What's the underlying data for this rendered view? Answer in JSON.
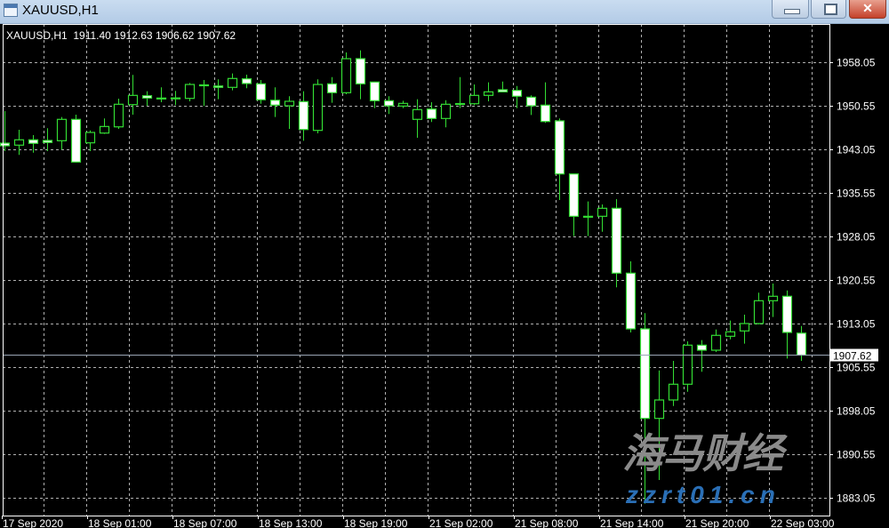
{
  "window": {
    "title": "XAUUSD,H1",
    "buttons": [
      "minimize",
      "maximize",
      "close"
    ]
  },
  "header": {
    "symbol": "XAUUSD,H1",
    "open": "1911.40",
    "high": "1912.63",
    "low": "1906.62",
    "close": "1907.62"
  },
  "watermark": {
    "brand": "海马财经",
    "url": "zzrt01.cn"
  },
  "colors": {
    "background": "#000000",
    "candle_outline": "#33dd33",
    "bull_body": "#000000",
    "bear_body": "#ffffff",
    "grid": "#b0b0b0",
    "price_line": "#9aa5b5"
  },
  "chart_data": {
    "type": "candlestick",
    "symbol": "XAUUSD",
    "timeframe": "H1",
    "ylim": [
      1878.5,
      1966
    ],
    "y_ticks": [
      "1958.05",
      "1950.55",
      "1943.05",
      "1935.55",
      "1928.05",
      "1920.55",
      "1913.05",
      "1905.55",
      "1898.05",
      "1890.55",
      "1883.05"
    ],
    "x_tick_labels": [
      "17 Sep 2020",
      "18 Sep 01:00",
      "18 Sep 07:00",
      "18 Sep 13:00",
      "18 Sep 19:00",
      "21 Sep 02:00",
      "21 Sep 08:00",
      "21 Sep 14:00",
      "21 Sep 20:00",
      "22 Sep 03:00"
    ],
    "current_price": "1907.62",
    "grid": true,
    "ohlc": [
      [
        1944.12,
        1949.63,
        1942.74,
        1943.66
      ],
      [
        1943.77,
        1946.42,
        1942.09,
        1944.69
      ],
      [
        1944.69,
        1945.5,
        1942.48,
        1944.08
      ],
      [
        1944.58,
        1946.68,
        1942.74,
        1944.23
      ],
      [
        1944.53,
        1948.61,
        1943.0,
        1948.21
      ],
      [
        1948.21,
        1949.02,
        1940.8,
        1940.86
      ],
      [
        1944.17,
        1946.31,
        1942.74,
        1945.96
      ],
      [
        1945.85,
        1948.36,
        1945.7,
        1946.98
      ],
      [
        1946.92,
        1951.77,
        1946.57,
        1950.81
      ],
      [
        1950.75,
        1955.86,
        1949.02,
        1952.34
      ],
      [
        1952.28,
        1953.05,
        1950.55,
        1951.88
      ],
      [
        1951.88,
        1953.72,
        1951.16,
        1951.85
      ],
      [
        1951.88,
        1953.11,
        1950.66,
        1951.9
      ],
      [
        1951.82,
        1954.48,
        1951.32,
        1954.22
      ],
      [
        1954.15,
        1954.99,
        1950.5,
        1954.09
      ],
      [
        1953.96,
        1955.1,
        1951.67,
        1953.72
      ],
      [
        1953.72,
        1956.11,
        1953.2,
        1955.25
      ],
      [
        1955.19,
        1955.91,
        1953.57,
        1954.38
      ],
      [
        1954.33,
        1954.99,
        1950.9,
        1951.58
      ],
      [
        1951.51,
        1953.72,
        1948.61,
        1950.66
      ],
      [
        1950.55,
        1952.19,
        1946.57,
        1951.32
      ],
      [
        1951.27,
        1953.05,
        1944.53,
        1946.46
      ],
      [
        1946.31,
        1955.1,
        1945.81,
        1954.22
      ],
      [
        1954.33,
        1955.49,
        1951.06,
        1952.8
      ],
      [
        1952.8,
        1959.73,
        1952.54,
        1958.66
      ],
      [
        1958.66,
        1960.09,
        1951.67,
        1954.33
      ],
      [
        1954.64,
        1954.7,
        1950.14,
        1951.42
      ],
      [
        1951.42,
        1952.19,
        1949.13,
        1950.55
      ],
      [
        1950.5,
        1951.42,
        1950.14,
        1950.96
      ],
      [
        1948.21,
        1951.67,
        1945.04,
        1949.89
      ],
      [
        1949.98,
        1951.16,
        1947.75,
        1948.36
      ],
      [
        1948.36,
        1951.51,
        1946.83,
        1950.81
      ],
      [
        1950.93,
        1955.49,
        1950.14,
        1950.87
      ],
      [
        1950.9,
        1954.22,
        1950.66,
        1952.34
      ],
      [
        1952.34,
        1954.58,
        1951.32,
        1952.95
      ],
      [
        1953.31,
        1954.73,
        1952.92,
        1952.95
      ],
      [
        1953.2,
        1953.96,
        1950.14,
        1952.19
      ],
      [
        1952.03,
        1952.34,
        1948.97,
        1950.55
      ],
      [
        1950.66,
        1954.58,
        1947.6,
        1947.84
      ],
      [
        1947.95,
        1948.36,
        1934.33,
        1938.81
      ],
      [
        1938.81,
        1938.85,
        1928.1,
        1931.52
      ],
      [
        1931.52,
        1934.07,
        1928.1,
        1931.49
      ],
      [
        1931.52,
        1933.56,
        1928.86,
        1932.9
      ],
      [
        1932.9,
        1934.48,
        1919.28,
        1921.73
      ],
      [
        1921.73,
        1923.76,
        1911.52,
        1912.13
      ],
      [
        1912.13,
        1914.84,
        1882.03,
        1896.72
      ],
      [
        1896.72,
        1904.98,
        1886.11,
        1899.89
      ],
      [
        1899.89,
        1906.62,
        1898.86,
        1902.6
      ],
      [
        1902.6,
        1909.99,
        1901.31,
        1909.33
      ],
      [
        1909.33,
        1910.19,
        1904.74,
        1908.46
      ],
      [
        1908.46,
        1912.03,
        1908.15,
        1911.02
      ],
      [
        1910.86,
        1913.56,
        1910.34,
        1911.63
      ],
      [
        1911.78,
        1914.58,
        1909.58,
        1913.05
      ],
      [
        1913.05,
        1918.36,
        1912.9,
        1916.98
      ],
      [
        1916.98,
        1919.94,
        1914.17,
        1917.75
      ],
      [
        1917.75,
        1918.76,
        1907.03,
        1911.52
      ],
      [
        1911.4,
        1912.63,
        1906.62,
        1907.62
      ]
    ]
  }
}
